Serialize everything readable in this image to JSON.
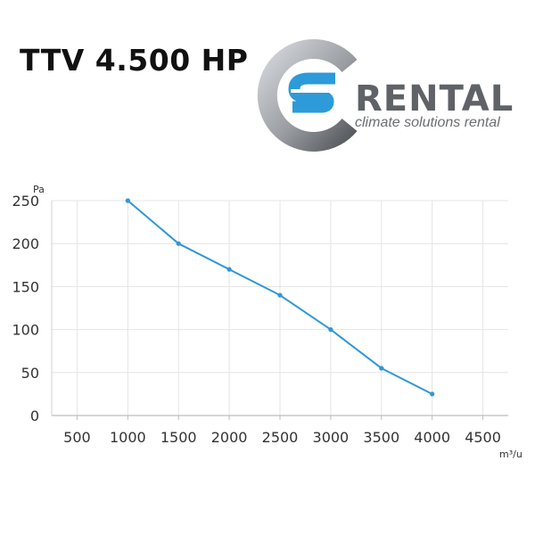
{
  "header": {
    "title": "TTV 4.500 HP"
  },
  "logo": {
    "brand": "RENTAL",
    "tagline": "climate solutions rental",
    "colors": {
      "ring_light": "#c9ccd0",
      "ring_dark": "#6b6e72",
      "accent_blue": "#2d9ad9",
      "text_gray": "#5f6266"
    }
  },
  "chart_data": {
    "type": "line",
    "x_unit": "m³/u",
    "y_unit": "Pa",
    "x_ticks": [
      "500",
      "1000",
      "1500",
      "2000",
      "2500",
      "3000",
      "3500",
      "4000",
      "4500"
    ],
    "y_ticks": [
      "0",
      "50",
      "100",
      "150",
      "200",
      "250"
    ],
    "xlim": [
      250,
      4750
    ],
    "ylim": [
      0,
      250
    ],
    "grid": true,
    "series": [
      {
        "color": "#2f97d8",
        "x": [
          1000,
          1500,
          2000,
          2500,
          3000,
          3500,
          4000
        ],
        "y": [
          250,
          200,
          170,
          140,
          100,
          55,
          25
        ]
      }
    ]
  }
}
